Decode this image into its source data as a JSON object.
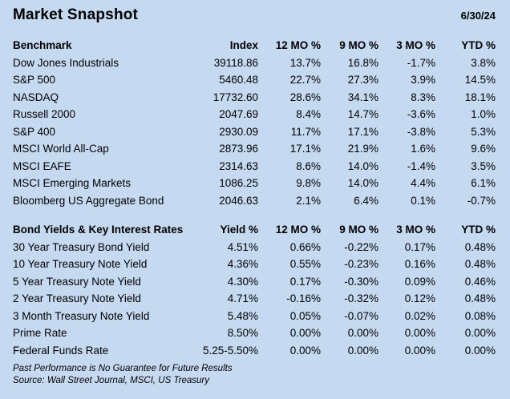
{
  "header": {
    "title": "Market Snapshot",
    "date": "6/30/24"
  },
  "benchmark_table": {
    "columns": [
      "Benchmark",
      "Index",
      "12 MO %",
      "9 MO %",
      "3 MO %",
      "YTD %"
    ],
    "rows": [
      [
        "Dow Jones Industrials",
        "39118.86",
        "13.7%",
        "16.8%",
        "-1.7%",
        "3.8%"
      ],
      [
        "S&P 500",
        "5460.48",
        "22.7%",
        "27.3%",
        "3.9%",
        "14.5%"
      ],
      [
        "NASDAQ",
        "17732.60",
        "28.6%",
        "34.1%",
        "8.3%",
        "18.1%"
      ],
      [
        "Russell 2000",
        "2047.69",
        "8.4%",
        "14.7%",
        "-3.6%",
        "1.0%"
      ],
      [
        "S&P 400",
        "2930.09",
        "11.7%",
        "17.1%",
        "-3.8%",
        "5.3%"
      ],
      [
        "MSCI World All-Cap",
        "2873.96",
        "17.1%",
        "21.9%",
        "1.6%",
        "9.6%"
      ],
      [
        "MSCI EAFE",
        "2314.63",
        "8.6%",
        "14.0%",
        "-1.4%",
        "3.5%"
      ],
      [
        "MSCI Emerging Markets",
        "1086.25",
        "9.8%",
        "14.0%",
        "4.4%",
        "6.1%"
      ],
      [
        "Bloomberg US Aggregate Bond",
        "2046.63",
        "2.1%",
        "6.4%",
        "0.1%",
        "-0.7%"
      ]
    ]
  },
  "bond_table": {
    "columns": [
      "Bond Yields & Key Interest Rates",
      "Yield %",
      "12 MO %",
      "9 MO %",
      "3 MO %",
      "YTD %"
    ],
    "rows": [
      [
        "30 Year Treasury Bond Yield",
        "4.51%",
        "0.66%",
        "-0.22%",
        "0.17%",
        "0.48%"
      ],
      [
        "10 Year Treasury Note Yield",
        "4.36%",
        "0.55%",
        "-0.23%",
        "0.16%",
        "0.48%"
      ],
      [
        "5 Year Treasury Note Yield",
        "4.30%",
        "0.17%",
        "-0.30%",
        "0.09%",
        "0.46%"
      ],
      [
        "2 Year Treasury Note Yield",
        "4.71%",
        "-0.16%",
        "-0.32%",
        "0.12%",
        "0.48%"
      ],
      [
        "3 Month Treasury Note Yield",
        "5.48%",
        "0.05%",
        "-0.07%",
        "0.02%",
        "0.08%"
      ],
      [
        "Prime Rate",
        "8.50%",
        "0.00%",
        "0.00%",
        "0.00%",
        "0.00%"
      ],
      [
        "Federal Funds Rate",
        "5.25-5.50%",
        "0.00%",
        "0.00%",
        "0.00%",
        "0.00%"
      ]
    ]
  },
  "footer": {
    "disclaimer": "Past Performance is No Guarantee for Future Results",
    "source": "Source: Wall Street Journal, MSCI, US Treasury"
  },
  "colors": {
    "background": "#C5D9F1",
    "text": "#000000"
  }
}
